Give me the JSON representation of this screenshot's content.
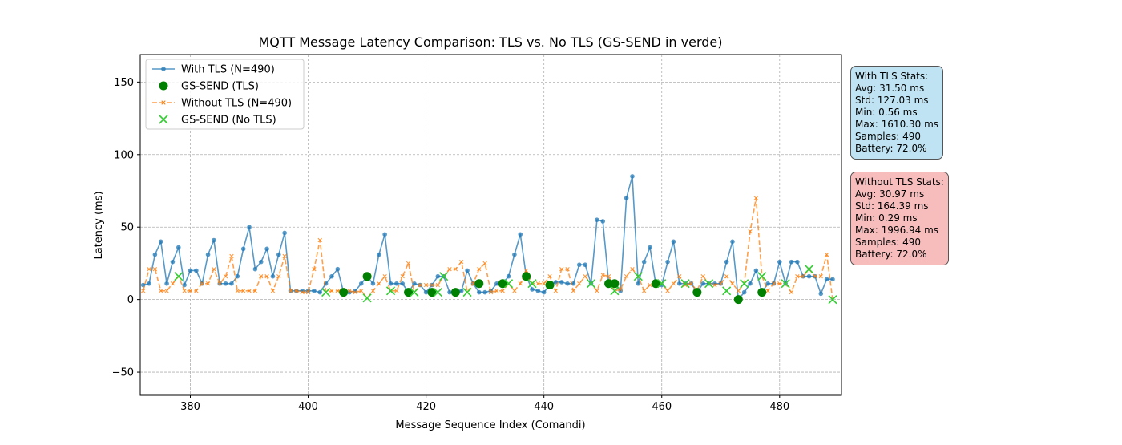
{
  "chart_data": {
    "type": "line",
    "title": "MQTT Message Latency Comparison: TLS vs. No TLS (GS-SEND in verde)",
    "xlabel": "Message Sequence Index (Comandi)",
    "ylabel": "Latency (ms)",
    "xlim": [
      371.5,
      490.5
    ],
    "ylim": [
      -66,
      169
    ],
    "xticks": [
      380,
      400,
      420,
      440,
      460,
      480
    ],
    "yticks": [
      -50,
      0,
      50,
      100,
      150
    ],
    "grid": true,
    "legend_position": "upper-left",
    "series": [
      {
        "name": "With TLS (N=490)",
        "color": "#1f77b4",
        "style": "solid-dot",
        "x": [
          372,
          373,
          374,
          375,
          376,
          377,
          378,
          379,
          380,
          381,
          382,
          383,
          384,
          385,
          386,
          387,
          388,
          389,
          390,
          391,
          392,
          393,
          394,
          395,
          396,
          397,
          398,
          399,
          400,
          401,
          402,
          403,
          404,
          405,
          406,
          407,
          408,
          409,
          410,
          411,
          412,
          413,
          414,
          415,
          416,
          417,
          418,
          419,
          420,
          421,
          422,
          423,
          424,
          425,
          426,
          427,
          428,
          429,
          430,
          431,
          432,
          433,
          434,
          435,
          436,
          437,
          438,
          439,
          440,
          441,
          442,
          443,
          444,
          445,
          446,
          447,
          448,
          449,
          450,
          451,
          452,
          453,
          454,
          455,
          456,
          457,
          458,
          459,
          460,
          461,
          462,
          463,
          464,
          465,
          466,
          467,
          468,
          469,
          470,
          471,
          472,
          473,
          474,
          475,
          476,
          477,
          478,
          479,
          480,
          481,
          482,
          483,
          484,
          485,
          486,
          487,
          488,
          489
        ],
        "y": [
          10,
          11,
          31,
          40,
          11,
          26,
          36,
          10,
          20,
          20,
          11,
          31,
          41,
          11,
          11,
          11,
          16,
          35,
          50,
          21,
          26,
          35,
          16,
          31,
          46,
          6,
          6,
          6,
          6,
          6,
          5,
          11,
          16,
          21,
          5,
          5,
          6,
          11,
          16,
          11,
          31,
          45,
          11,
          11,
          11,
          5,
          11,
          10,
          5,
          10,
          16,
          16,
          5,
          5,
          6,
          20,
          11,
          5,
          5,
          6,
          11,
          11,
          16,
          31,
          45,
          16,
          7,
          6,
          5,
          10,
          12,
          12,
          11,
          11,
          24,
          24,
          11,
          55,
          54,
          11,
          11,
          6,
          70,
          85,
          11,
          26,
          36,
          10,
          10,
          26,
          40,
          11,
          11,
          11,
          5,
          11,
          11,
          11,
          11,
          26,
          40,
          0,
          5,
          11,
          20,
          5,
          11,
          11,
          26,
          11,
          26,
          26,
          16,
          16,
          16,
          4,
          14,
          14
        ]
      },
      {
        "name": "GS-SEND (TLS)",
        "color": "#008000",
        "style": "circle-marker",
        "x": [
          406,
          410,
          417,
          421,
          425,
          429,
          433,
          437,
          441,
          451,
          452,
          459,
          466,
          473,
          477
        ],
        "y": [
          5,
          16,
          5,
          5,
          5,
          11,
          11,
          16,
          10,
          11,
          11,
          11,
          5,
          0,
          5
        ]
      },
      {
        "name": "Without TLS (N=490)",
        "color": "#ff7f0e",
        "style": "dashed-x",
        "x": [
          372,
          373,
          374,
          375,
          376,
          377,
          378,
          379,
          380,
          381,
          382,
          383,
          384,
          385,
          386,
          387,
          388,
          389,
          390,
          391,
          392,
          393,
          394,
          395,
          396,
          397,
          398,
          399,
          400,
          401,
          402,
          403,
          404,
          405,
          406,
          407,
          408,
          409,
          410,
          411,
          412,
          413,
          414,
          415,
          416,
          417,
          418,
          419,
          420,
          421,
          422,
          423,
          424,
          425,
          426,
          427,
          428,
          429,
          430,
          431,
          432,
          433,
          434,
          435,
          436,
          437,
          438,
          439,
          440,
          441,
          442,
          443,
          444,
          445,
          446,
          447,
          448,
          449,
          450,
          451,
          452,
          453,
          454,
          455,
          456,
          457,
          458,
          459,
          460,
          461,
          462,
          463,
          464,
          465,
          466,
          467,
          468,
          469,
          470,
          471,
          472,
          473,
          474,
          475,
          476,
          477,
          478,
          479,
          480,
          481,
          482,
          483,
          484,
          485,
          486,
          487,
          488,
          489
        ],
        "y": [
          6,
          21,
          21,
          6,
          6,
          11,
          16,
          6,
          6,
          6,
          11,
          11,
          21,
          11,
          16,
          30,
          6,
          6,
          6,
          6,
          16,
          16,
          6,
          16,
          30,
          6,
          6,
          5,
          5,
          21,
          41,
          5,
          6,
          6,
          6,
          6,
          5,
          6,
          1,
          6,
          11,
          16,
          6,
          6,
          16,
          25,
          5,
          10,
          10,
          10,
          10,
          16,
          21,
          21,
          26,
          5,
          11,
          21,
          25,
          5,
          6,
          6,
          11,
          6,
          11,
          20,
          11,
          11,
          11,
          16,
          6,
          21,
          21,
          6,
          11,
          16,
          11,
          6,
          17,
          16,
          6,
          7,
          16,
          21,
          16,
          6,
          10,
          10,
          11,
          6,
          11,
          16,
          10,
          11,
          6,
          16,
          11,
          10,
          11,
          16,
          11,
          6,
          11,
          47,
          70,
          16,
          6,
          11,
          11,
          11,
          5,
          16,
          16,
          21,
          16,
          16,
          31,
          0
        ]
      },
      {
        "name": "GS-SEND (No TLS)",
        "color": "#32cd32",
        "style": "x-marker",
        "x": [
          378,
          403,
          410,
          414,
          418,
          422,
          423,
          427,
          434,
          438,
          448,
          452,
          456,
          460,
          464,
          468,
          471,
          474,
          477,
          481,
          485,
          489
        ],
        "y": [
          16,
          5,
          1,
          6,
          5,
          5,
          16,
          5,
          11,
          11,
          11,
          6,
          16,
          11,
          11,
          11,
          6,
          11,
          16,
          11,
          21,
          0
        ]
      }
    ]
  },
  "stats": {
    "tls": {
      "title": "With TLS Stats:",
      "avg": "Avg: 31.50 ms",
      "std": "Std: 127.03 ms",
      "min": "Min: 0.56 ms",
      "max": "Max: 1610.30 ms",
      "samples": "Samples: 490",
      "battery": "Battery: 72.0%"
    },
    "notls": {
      "title": "Without TLS Stats:",
      "avg": "Avg: 30.97 ms",
      "std": "Std: 164.39 ms",
      "min": "Min: 0.29 ms",
      "max": "Max: 1996.94 ms",
      "samples": "Samples: 490",
      "battery": "Battery: 72.0%"
    }
  }
}
